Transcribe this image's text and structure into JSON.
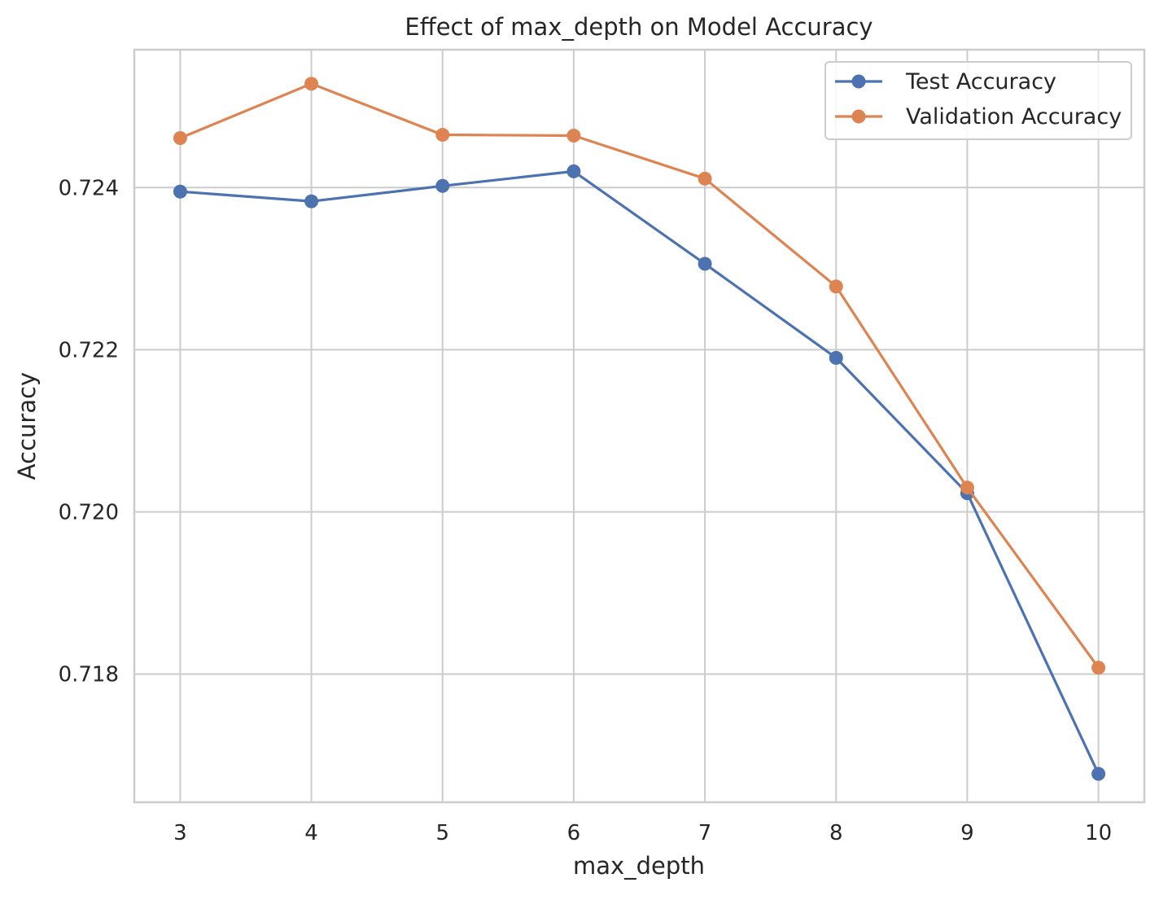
{
  "chart_data": {
    "type": "line",
    "title": "Effect of max_depth on Model Accuracy",
    "xlabel": "max_depth",
    "ylabel": "Accuracy",
    "x": [
      3,
      4,
      5,
      6,
      7,
      8,
      9,
      10
    ],
    "xlim": [
      2.65,
      10.35
    ],
    "ylim": [
      0.71642,
      0.7257
    ],
    "xticks": [
      "3",
      "4",
      "5",
      "6",
      "7",
      "8",
      "9",
      "10"
    ],
    "yticks": [
      "0.718",
      "0.720",
      "0.722",
      "0.724"
    ],
    "ytick_values": [
      0.718,
      0.72,
      0.722,
      0.724
    ],
    "grid": true,
    "legend_position": "top-right",
    "series": [
      {
        "name": "Test Accuracy",
        "color": "#4c72b0",
        "values": [
          0.72395,
          0.72383,
          0.72402,
          0.7242,
          0.72306,
          0.7219,
          0.72023,
          0.71677
        ]
      },
      {
        "name": "Validation Accuracy",
        "color": "#dd8452",
        "values": [
          0.72461,
          0.72528,
          0.72465,
          0.72464,
          0.72411,
          0.72278,
          0.7203,
          0.71808
        ]
      }
    ]
  }
}
